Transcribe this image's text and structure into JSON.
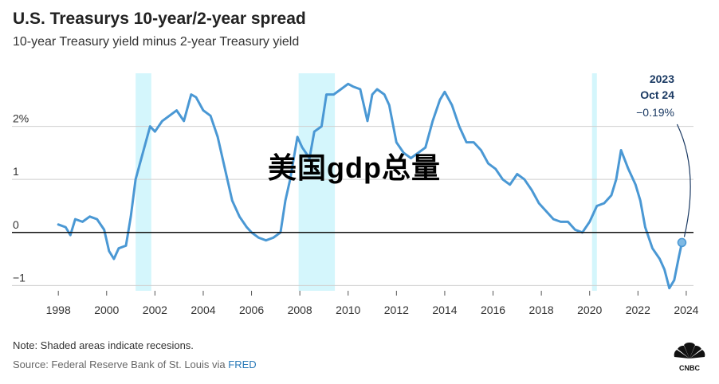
{
  "header": {
    "title": "U.S. Treasurys 10-year/2-year spread",
    "subtitle": "10-year Treasury yield minus 2-year Treasury yield"
  },
  "footer": {
    "note": "Note: Shaded areas indicate recesions.",
    "source_prefix": "Source: Federal Reserve Bank of St. Louis via ",
    "source_link": "FRED",
    "logo_text": "CNBC"
  },
  "overlay": {
    "watermark": "美国gdp总量"
  },
  "annotation": {
    "year": "2023",
    "date": "Oct 24",
    "value": "−0.19%"
  },
  "colors": {
    "line": "#4a98d4",
    "recession": "#d4f6fc",
    "zero_line": "#111111",
    "grid": "#cfcfcf"
  },
  "chart_data": {
    "type": "line",
    "title": "U.S. Treasurys 10-year/2-year spread",
    "subtitle": "10-year Treasury yield minus 2-year Treasury yield",
    "xlim": [
      1997.4,
      2024.3
    ],
    "ylim": [
      -1.1,
      3.0
    ],
    "x_ticks": [
      1998,
      2000,
      2002,
      2004,
      2006,
      2008,
      2010,
      2012,
      2014,
      2016,
      2018,
      2020,
      2022,
      2024
    ],
    "y_ticks": [
      {
        "value": 2,
        "label": "2%"
      },
      {
        "value": 1,
        "label": "1"
      },
      {
        "value": 0,
        "label": "0"
      },
      {
        "value": -1,
        "label": "−1"
      }
    ],
    "recessions": [
      [
        2001.2,
        2001.85
      ],
      [
        2007.95,
        2009.45
      ],
      [
        2020.1,
        2020.3
      ]
    ],
    "series": [
      {
        "x": [
          1998.0,
          1998.3,
          1998.5,
          1998.7,
          1999.0,
          1999.3,
          1999.6,
          1999.9,
          2000.1,
          2000.3,
          2000.5,
          2000.8,
          2001.0,
          2001.2,
          2001.5,
          2001.8,
          2002.0,
          2002.3,
          2002.6,
          2002.9,
          2003.2,
          2003.5,
          2003.7,
          2004.0,
          2004.3,
          2004.6,
          2004.9,
          2005.2,
          2005.5,
          2005.8,
          2006.0,
          2006.3,
          2006.6,
          2006.9,
          2007.2,
          2007.4,
          2007.6,
          2007.9,
          2008.1,
          2008.4,
          2008.6,
          2008.9,
          2009.1,
          2009.4,
          2009.7,
          2010.0,
          2010.2,
          2010.5,
          2010.8,
          2011.0,
          2011.2,
          2011.5,
          2011.7,
          2012.0,
          2012.3,
          2012.6,
          2012.9,
          2013.2,
          2013.5,
          2013.8,
          2014.0,
          2014.3,
          2014.6,
          2014.9,
          2015.2,
          2015.5,
          2015.8,
          2016.1,
          2016.4,
          2016.7,
          2017.0,
          2017.3,
          2017.6,
          2017.9,
          2018.2,
          2018.5,
          2018.8,
          2019.1,
          2019.4,
          2019.7,
          2020.0,
          2020.3,
          2020.6,
          2020.9,
          2021.1,
          2021.3,
          2021.6,
          2021.9,
          2022.1,
          2022.3,
          2022.6,
          2022.9,
          2023.1,
          2023.3,
          2023.5,
          2023.7,
          2023.82
        ],
        "y": [
          0.15,
          0.1,
          -0.05,
          0.25,
          0.2,
          0.3,
          0.25,
          0.05,
          -0.35,
          -0.5,
          -0.3,
          -0.25,
          0.3,
          1.0,
          1.5,
          2.0,
          1.9,
          2.1,
          2.2,
          2.3,
          2.1,
          2.6,
          2.55,
          2.3,
          2.2,
          1.8,
          1.2,
          0.6,
          0.3,
          0.1,
          0.0,
          -0.1,
          -0.15,
          -0.1,
          0.0,
          0.6,
          1.0,
          1.8,
          1.6,
          1.4,
          1.9,
          2.0,
          2.6,
          2.6,
          2.7,
          2.8,
          2.75,
          2.7,
          2.1,
          2.6,
          2.7,
          2.6,
          2.4,
          1.7,
          1.5,
          1.4,
          1.5,
          1.6,
          2.1,
          2.5,
          2.65,
          2.4,
          2.0,
          1.7,
          1.7,
          1.55,
          1.3,
          1.2,
          1.0,
          0.9,
          1.1,
          1.0,
          0.8,
          0.55,
          0.4,
          0.25,
          0.2,
          0.2,
          0.05,
          0.0,
          0.2,
          0.5,
          0.55,
          0.7,
          1.0,
          1.55,
          1.2,
          0.9,
          0.6,
          0.1,
          -0.3,
          -0.5,
          -0.7,
          -1.05,
          -0.9,
          -0.45,
          -0.19
        ]
      }
    ],
    "highlight": {
      "x": 2023.82,
      "y": -0.19
    }
  }
}
